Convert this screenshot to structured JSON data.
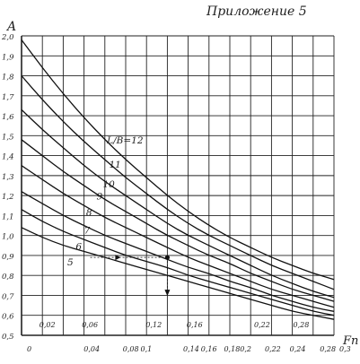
{
  "header": {
    "appendix": "Приложение 5"
  },
  "chart_data": {
    "type": "line",
    "ylabel": "A",
    "xlabel": "Fn",
    "xlim": [
      0,
      0.3
    ],
    "ylim": [
      0.5,
      2.0
    ],
    "grid": true,
    "x_ticks_bottom": [
      "0",
      "0,04",
      "0,08",
      "0,1",
      "0,14",
      "0,16",
      "0,18",
      "0,2",
      "0,22",
      "0,24",
      "0,28",
      "0,3"
    ],
    "x_ticks_top": [
      "0,02",
      "0,06",
      "0,12",
      "0,16",
      "0,22",
      "0,28"
    ],
    "y_ticks": [
      "2,0",
      "1,9",
      "1,8",
      "1,7",
      "1,6",
      "1,5",
      "1,4",
      "1,3",
      "1,2",
      "1,1",
      "1,0",
      "0,9",
      "0,8",
      "0,7",
      "0,6",
      "0,5"
    ],
    "legend_prefix": "L/B=",
    "series": [
      {
        "name": "5",
        "x": [
          0,
          0.02,
          0.04,
          0.06,
          0.08,
          0.1,
          0.12,
          0.14,
          0.16,
          0.18,
          0.2,
          0.22,
          0.24,
          0.26,
          0.28,
          0.3
        ],
        "y": [
          1.04,
          0.99,
          0.95,
          0.92,
          0.89,
          0.86,
          0.83,
          0.8,
          0.77,
          0.74,
          0.71,
          0.68,
          0.65,
          0.62,
          0.6,
          0.58
        ]
      },
      {
        "name": "6",
        "x": [
          0,
          0.02,
          0.04,
          0.06,
          0.08,
          0.1,
          0.12,
          0.14,
          0.16,
          0.18,
          0.2,
          0.22,
          0.24,
          0.26,
          0.28,
          0.3
        ],
        "y": [
          1.13,
          1.07,
          1.02,
          0.98,
          0.94,
          0.9,
          0.87,
          0.84,
          0.8,
          0.77,
          0.74,
          0.71,
          0.68,
          0.65,
          0.62,
          0.6
        ]
      },
      {
        "name": "7",
        "x": [
          0,
          0.02,
          0.04,
          0.06,
          0.08,
          0.1,
          0.12,
          0.14,
          0.16,
          0.18,
          0.2,
          0.22,
          0.24,
          0.26,
          0.28,
          0.3
        ],
        "y": [
          1.22,
          1.16,
          1.1,
          1.05,
          1.0,
          0.96,
          0.92,
          0.88,
          0.84,
          0.81,
          0.77,
          0.74,
          0.7,
          0.67,
          0.64,
          0.62
        ]
      },
      {
        "name": "8",
        "x": [
          0,
          0.02,
          0.04,
          0.06,
          0.08,
          0.1,
          0.12,
          0.14,
          0.16,
          0.18,
          0.2,
          0.22,
          0.24,
          0.26,
          0.28,
          0.3
        ],
        "y": [
          1.35,
          1.28,
          1.21,
          1.15,
          1.09,
          1.04,
          0.99,
          0.94,
          0.89,
          0.85,
          0.81,
          0.77,
          0.73,
          0.7,
          0.67,
          0.64
        ]
      },
      {
        "name": "9",
        "x": [
          0,
          0.02,
          0.04,
          0.06,
          0.08,
          0.1,
          0.12,
          0.14,
          0.16,
          0.18,
          0.2,
          0.22,
          0.24,
          0.26,
          0.28,
          0.3
        ],
        "y": [
          1.48,
          1.4,
          1.32,
          1.25,
          1.18,
          1.12,
          1.06,
          1.0,
          0.95,
          0.9,
          0.86,
          0.81,
          0.77,
          0.73,
          0.7,
          0.67
        ]
      },
      {
        "name": "10",
        "x": [
          0,
          0.02,
          0.04,
          0.06,
          0.08,
          0.1,
          0.12,
          0.14,
          0.16,
          0.18,
          0.2,
          0.22,
          0.24,
          0.26,
          0.28,
          0.3
        ],
        "y": [
          1.63,
          1.53,
          1.44,
          1.35,
          1.27,
          1.2,
          1.13,
          1.06,
          1.0,
          0.95,
          0.9,
          0.85,
          0.8,
          0.76,
          0.72,
          0.69
        ]
      },
      {
        "name": "11",
        "x": [
          0,
          0.02,
          0.04,
          0.06,
          0.08,
          0.1,
          0.12,
          0.14,
          0.16,
          0.18,
          0.2,
          0.22,
          0.24,
          0.26,
          0.28,
          0.3
        ],
        "y": [
          1.8,
          1.68,
          1.57,
          1.47,
          1.38,
          1.29,
          1.21,
          1.13,
          1.06,
          1.0,
          0.95,
          0.9,
          0.85,
          0.81,
          0.77,
          0.73
        ]
      },
      {
        "name": "12",
        "x": [
          0,
          0.02,
          0.04,
          0.06,
          0.08,
          0.1,
          0.12,
          0.14,
          0.16,
          0.18,
          0.2,
          0.22,
          0.24,
          0.26,
          0.28,
          0.3
        ],
        "y": [
          1.98,
          1.84,
          1.71,
          1.59,
          1.48,
          1.38,
          1.29,
          1.2,
          1.12,
          1.05,
          0.99,
          0.94,
          0.89,
          0.85,
          0.81,
          0.78
        ]
      }
    ],
    "example_point": {
      "x": 0.14,
      "y": 0.89
    }
  }
}
